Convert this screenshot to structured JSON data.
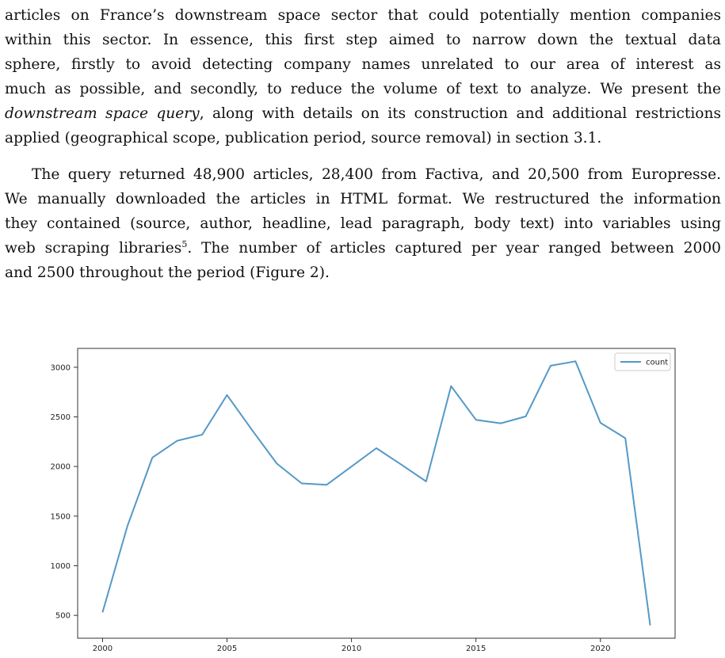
{
  "paragraph1": {
    "line1": "articles on France’s downstream space sector that could potentially mention companies",
    "line2": "within this sector. In essence, this first step aimed to narrow down the textual data",
    "line3": "sphere, firstly to avoid detecting company names unrelated to our area of interest as",
    "line4": "much as possible, and secondly, to reduce the volume of text to analyze. We present the",
    "line5_italic": "downstream space query",
    "line5_rest": ", along with details on its construction and additional restrictions",
    "line6": "applied (geographical scope, publication period, source removal) in section 3.1."
  },
  "paragraph2": {
    "line1": "The query returned 48,900 articles, 28,400 from Factiva, and 20,500 from Europresse.",
    "line2": "We manually downloaded the articles in HTML format. We restructured the information",
    "line3": "they contained (source, author, headline, lead paragraph, body text) into variables using",
    "line4_a": "web scraping libraries",
    "footnote_mark": "5",
    "line4_b": ". The number of articles captured per year ranged between 2000",
    "line5": "and 2500 throughout the period (Figure 2)."
  },
  "chart_data": {
    "type": "line",
    "x": [
      2000,
      2001,
      2002,
      2003,
      2004,
      2005,
      2006,
      2007,
      2008,
      2009,
      2010,
      2011,
      2012,
      2013,
      2014,
      2015,
      2016,
      2017,
      2018,
      2019,
      2020,
      2021,
      2022
    ],
    "series": [
      {
        "name": "count",
        "values": [
          530,
          1400,
          2090,
          2260,
          2320,
          2720,
          2370,
          2030,
          1830,
          1815,
          2000,
          2185,
          2020,
          1850,
          2810,
          2470,
          2435,
          2505,
          3015,
          3060,
          2440,
          2285,
          400
        ]
      }
    ],
    "xticks": [
      2000,
      2005,
      2010,
      2015,
      2020
    ],
    "yticks": [
      500,
      1000,
      1500,
      2000,
      2500,
      3000
    ],
    "xlim": [
      1999,
      2023
    ],
    "ylim": [
      270,
      3190
    ],
    "legend": "upper right",
    "grid": false,
    "line_color": "#5499c7"
  }
}
